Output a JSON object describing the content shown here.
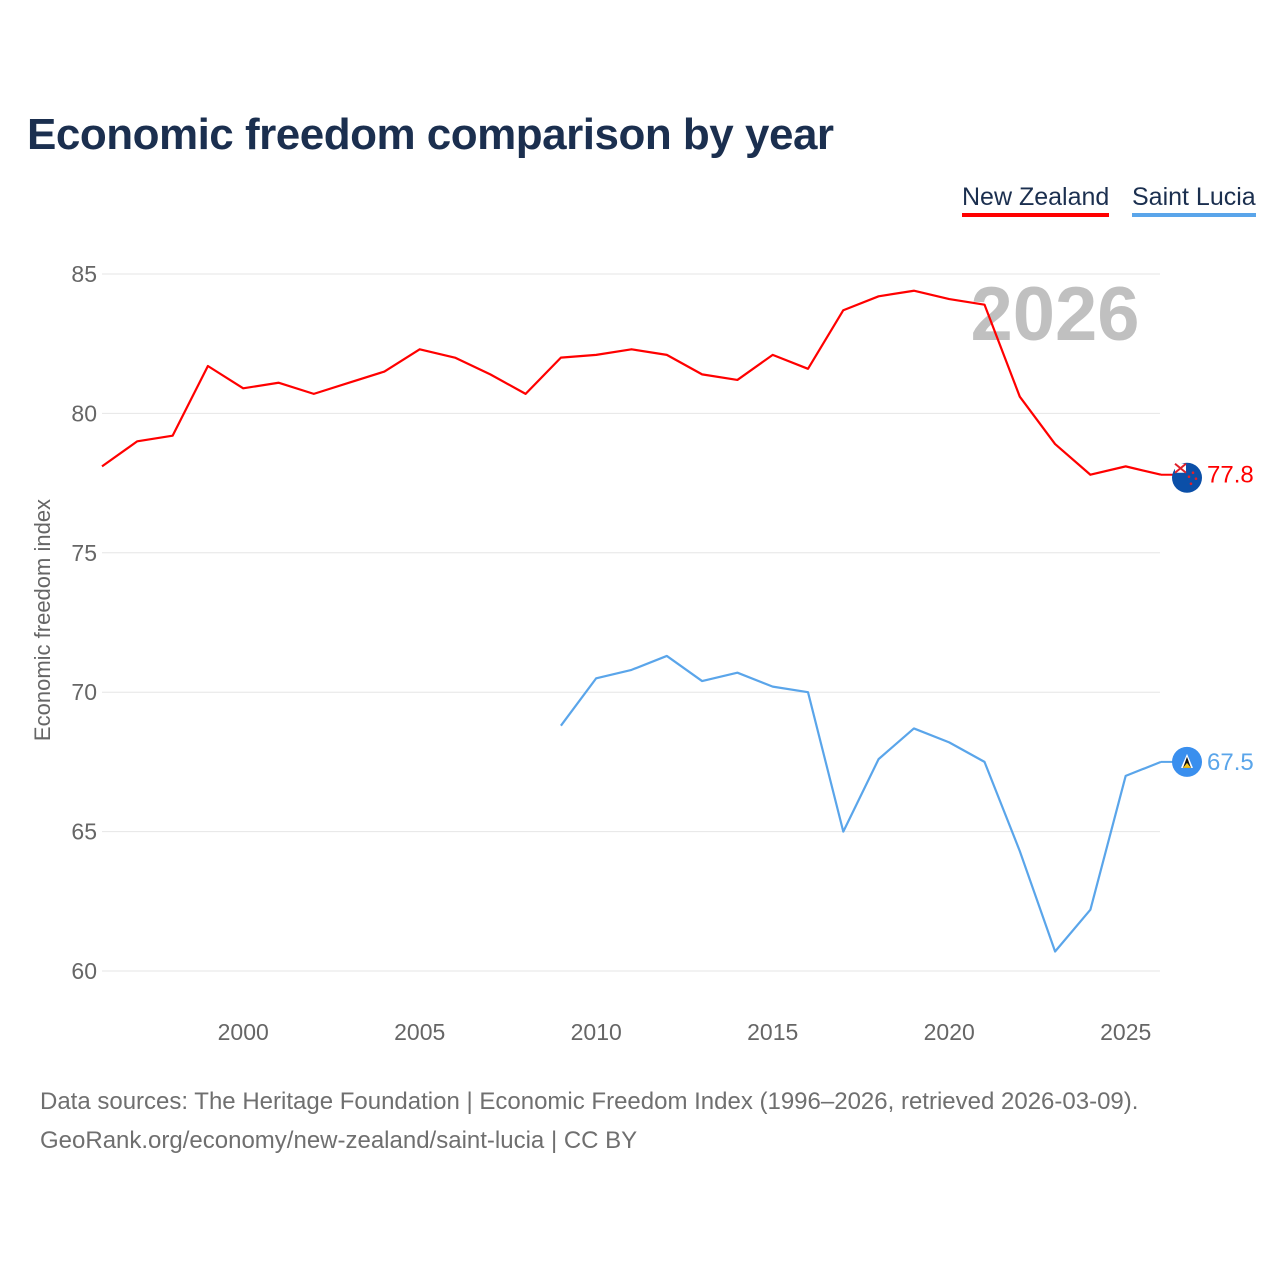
{
  "chart_data": {
    "type": "line",
    "title": "Economic freedom comparison by year",
    "xlabel": "",
    "ylabel": "Economic freedom index",
    "xlim": [
      1996,
      2026
    ],
    "ylim": [
      59,
      86
    ],
    "yticks": [
      60,
      65,
      70,
      75,
      80,
      85
    ],
    "xticks": [
      2000,
      2005,
      2010,
      2015,
      2020,
      2025
    ],
    "grid": true,
    "legend_position": "top-right",
    "watermark_year": "2026",
    "series": [
      {
        "name": "New Zealand",
        "color": "#ff0000",
        "flag_icon": "new-zealand-flag-icon",
        "end_label": "77.8",
        "x": [
          1996,
          1997,
          1998,
          1999,
          2000,
          2001,
          2002,
          2003,
          2004,
          2005,
          2006,
          2007,
          2008,
          2009,
          2010,
          2011,
          2012,
          2013,
          2014,
          2015,
          2016,
          2017,
          2018,
          2019,
          2020,
          2021,
          2022,
          2023,
          2024,
          2025,
          2026
        ],
        "values": [
          78.1,
          79.0,
          79.2,
          81.7,
          80.9,
          81.1,
          80.7,
          81.1,
          81.5,
          82.3,
          82.0,
          81.4,
          80.7,
          82.0,
          82.1,
          82.3,
          82.1,
          81.4,
          81.2,
          82.1,
          81.6,
          83.7,
          84.2,
          84.4,
          84.1,
          83.9,
          80.6,
          78.9,
          77.8,
          78.1,
          77.8
        ]
      },
      {
        "name": "Saint Lucia",
        "color": "#5aa5ea",
        "flag_icon": "saint-lucia-flag-icon",
        "end_label": "67.5",
        "x": [
          2009,
          2010,
          2011,
          2012,
          2013,
          2014,
          2015,
          2016,
          2017,
          2018,
          2019,
          2020,
          2021,
          2022,
          2023,
          2024,
          2025,
          2026
        ],
        "values": [
          68.8,
          70.5,
          70.8,
          71.3,
          70.4,
          70.7,
          70.2,
          70.0,
          65.0,
          67.6,
          68.7,
          68.2,
          67.5,
          64.3,
          60.7,
          62.2,
          67.0,
          67.5
        ]
      }
    ]
  },
  "source": {
    "line1": "Data sources: The Heritage Foundation | Economic Freedom Index (1996–2026, retrieved 2026-03-09).",
    "line2": "GeoRank.org/economy/new-zealand/saint-lucia | CC BY"
  }
}
